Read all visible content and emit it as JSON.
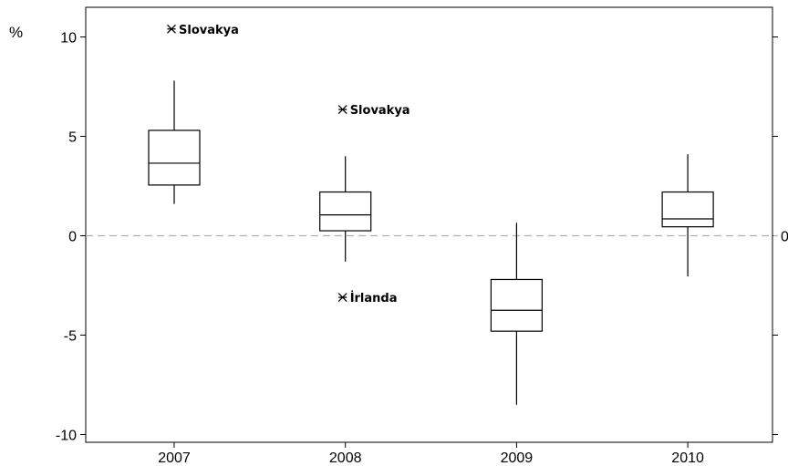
{
  "chart_data": {
    "type": "boxplot",
    "ylabel": "%",
    "ylim": [
      -10.5,
      11.5
    ],
    "yticks": [
      -10,
      -5,
      0,
      5,
      10
    ],
    "right_tick_label": "0",
    "reference_line": 0,
    "grid": false,
    "categories": [
      "2007",
      "2008",
      "2009",
      "2010"
    ],
    "boxes": [
      {
        "category": "2007",
        "whisker_low": 1.6,
        "q1": 2.55,
        "median": 3.65,
        "q3": 5.3,
        "whisker_high": 7.8
      },
      {
        "category": "2008",
        "whisker_low": -1.3,
        "q1": 0.25,
        "median": 1.05,
        "q3": 2.2,
        "whisker_high": 4.0
      },
      {
        "category": "2009",
        "whisker_low": -8.5,
        "q1": -4.8,
        "median": -3.75,
        "q3": -2.2,
        "whisker_high": 0.65
      },
      {
        "category": "2010",
        "whisker_low": -2.05,
        "q1": 0.45,
        "median": 0.85,
        "q3": 2.2,
        "whisker_high": 4.1
      }
    ],
    "outliers": [
      {
        "category": "2007",
        "value": 10.4,
        "label": "Slovakya"
      },
      {
        "category": "2008",
        "value": 6.35,
        "label": "Slovakya"
      },
      {
        "category": "2008",
        "value": -3.1,
        "label": "İrlanda"
      }
    ]
  }
}
